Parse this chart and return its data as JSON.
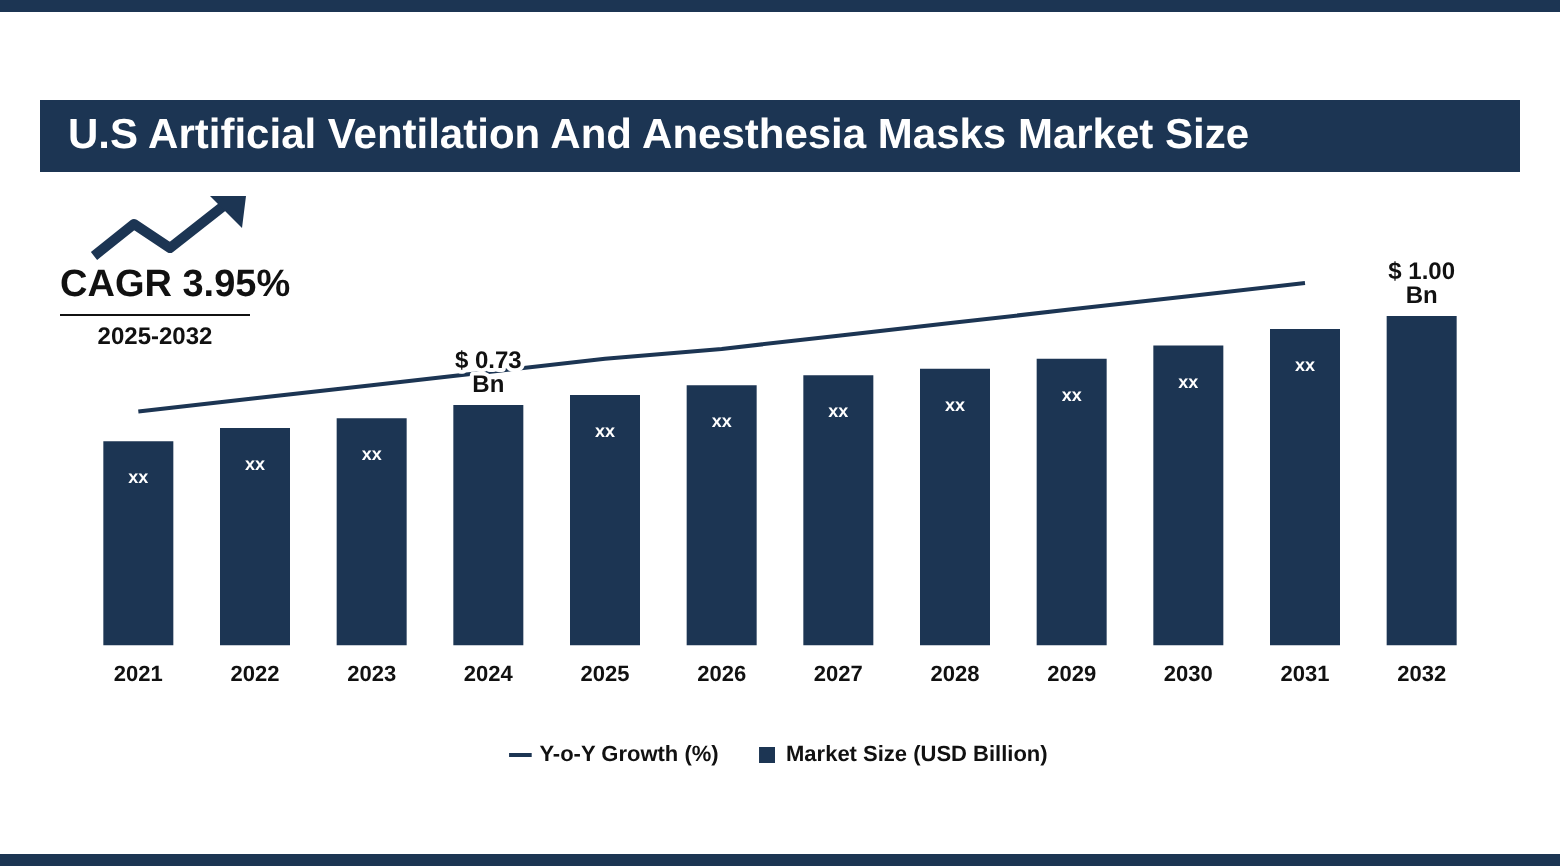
{
  "chart_data": {
    "type": "bar",
    "title": "U.S Artificial Ventilation And Anesthesia Masks Market Size",
    "annotations": [
      "CAGR 3.95%",
      "2025-2032"
    ],
    "tick_labels": "x",
    "grid": false,
    "legend": "bottom",
    "marker": "none",
    "categories": [
      "2021",
      "2022",
      "2023",
      "2024",
      "2025",
      "2026",
      "2027",
      "2028",
      "2029",
      "2030",
      "2031",
      "2032"
    ],
    "series": [
      {
        "name": "Market Size (USD Billion)",
        "color": "#1c3553",
        "values": [
          0.62,
          0.66,
          0.69,
          0.73,
          0.76,
          0.79,
          0.82,
          0.84,
          0.87,
          0.91,
          0.96,
          1.0
        ],
        "value_labels": [
          "xx",
          "xx",
          "xx",
          "$ 0.73 Bn",
          "xx",
          "xx",
          "xx",
          "xx",
          "xx",
          "xx",
          "xx",
          "$ 1.00 Bn"
        ]
      },
      {
        "name": "Y-o-Y Growth (%)",
        "type": "line",
        "color": "#1c3553",
        "values": [
          0.71,
          0.75,
          0.79,
          0.83,
          0.87,
          0.9,
          0.94,
          0.98,
          1.02,
          1.06,
          1.1,
          null
        ]
      }
    ]
  }
}
